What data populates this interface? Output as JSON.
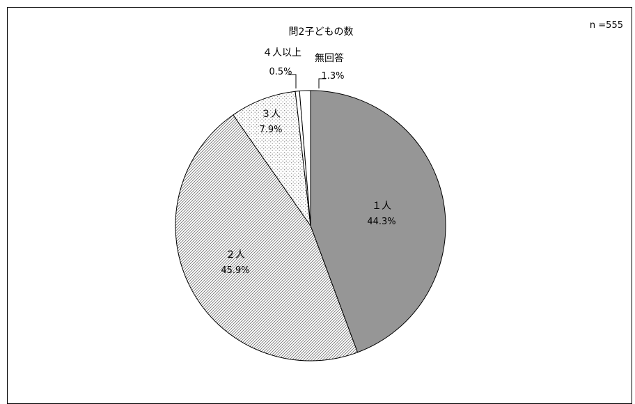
{
  "chart_data": {
    "type": "pie",
    "title": "問2子どもの数",
    "sample_size": "n =555",
    "slices": [
      {
        "label": "１人",
        "value": 44.3,
        "value_text": "44.3%",
        "color": "#969696",
        "pattern": "solid"
      },
      {
        "label": "２人",
        "value": 45.9,
        "value_text": "45.9%",
        "color": "#ffffff",
        "pattern": "diagonal-hatch"
      },
      {
        "label": "３人",
        "value": 7.9,
        "value_text": "7.9%",
        "color": "#ffffff",
        "pattern": "dots"
      },
      {
        "label": "４人以上",
        "value": 0.5,
        "value_text": "0.5%",
        "color": "#ffffff",
        "pattern": "solid"
      },
      {
        "label": "無回答",
        "value": 1.3,
        "value_text": "1.3%",
        "color": "#ffffff",
        "pattern": "solid"
      }
    ],
    "start_angle": "12 o'clock",
    "direction": "clockwise",
    "legend": "none"
  }
}
